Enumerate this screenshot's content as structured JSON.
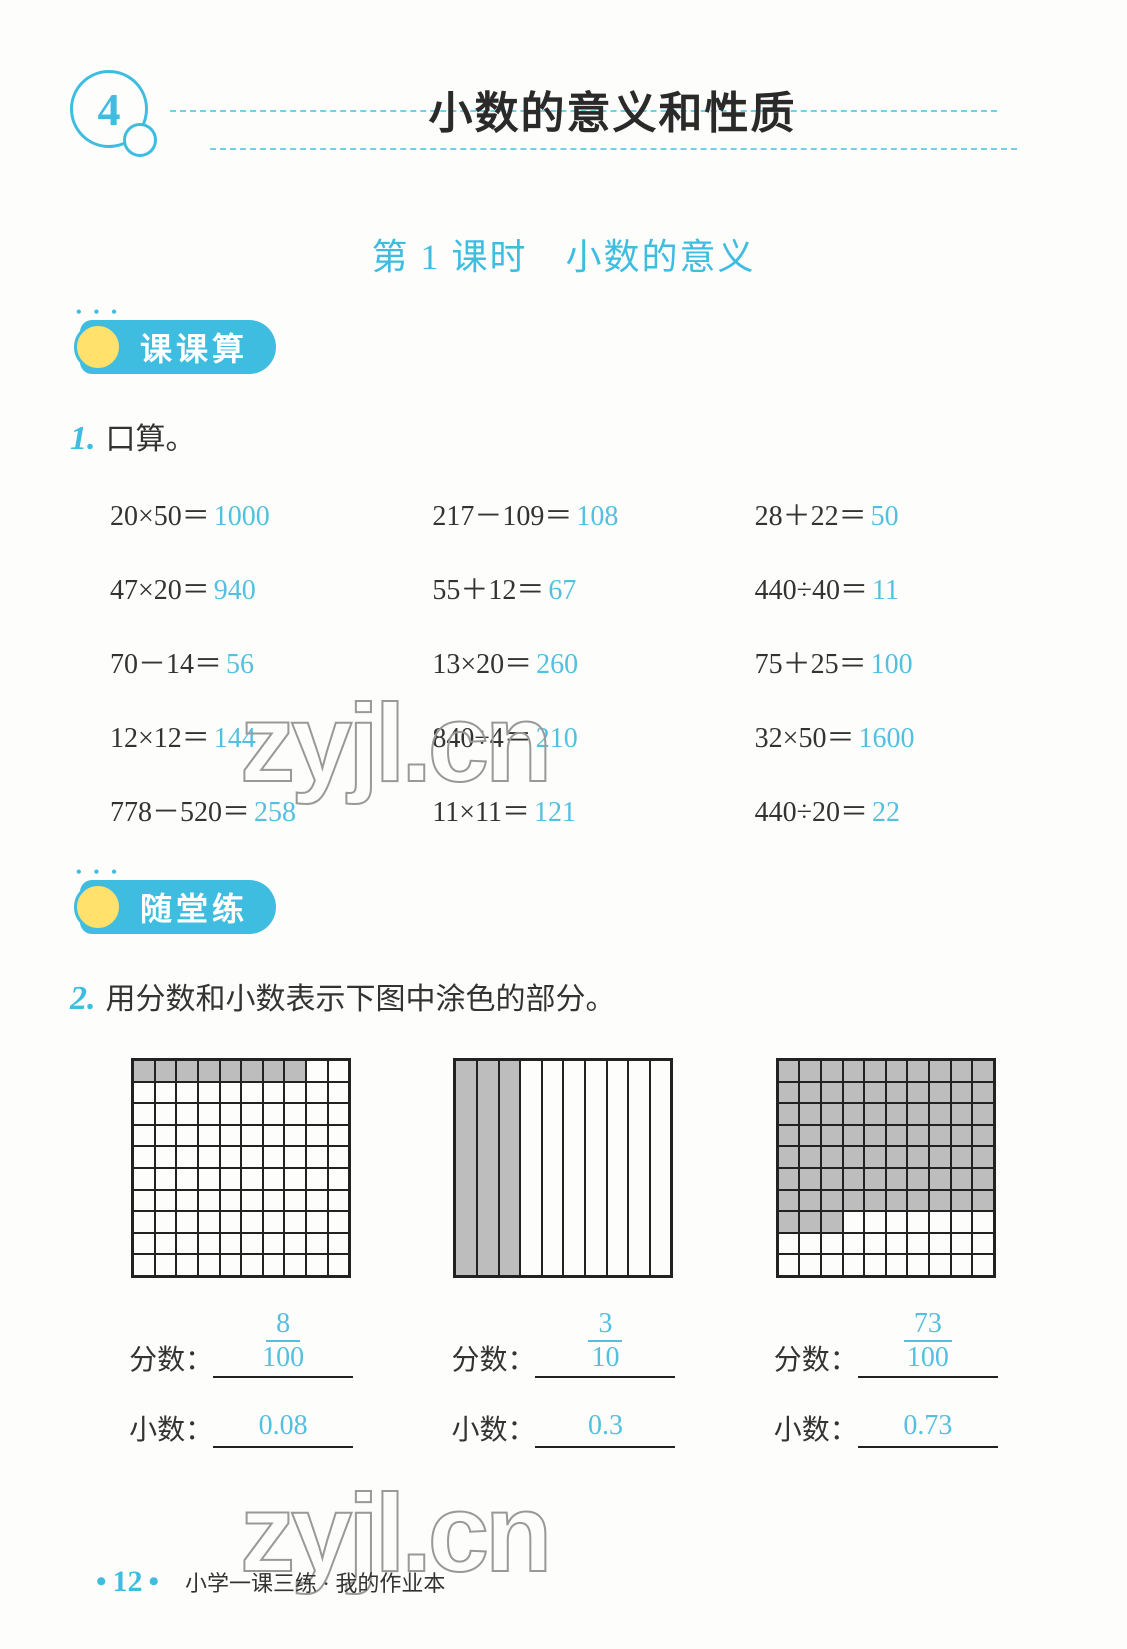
{
  "chapter": {
    "num": "4",
    "title": "小数的意义和性质"
  },
  "subtitle": "第 1 课时　小数的意义",
  "section1": {
    "label": "课课算"
  },
  "section2": {
    "label": "随堂练"
  },
  "q1": {
    "num": "1.",
    "text": "口算。",
    "rows": [
      [
        {
          "e": "20×50＝",
          "a": "1000"
        },
        {
          "e": "217－109＝",
          "a": "108"
        },
        {
          "e": "28＋22＝",
          "a": "50"
        }
      ],
      [
        {
          "e": "47×20＝",
          "a": "940"
        },
        {
          "e": "55＋12＝",
          "a": "67"
        },
        {
          "e": "440÷40＝",
          "a": "11"
        }
      ],
      [
        {
          "e": "70－14＝",
          "a": "56"
        },
        {
          "e": "13×20＝",
          "a": "260"
        },
        {
          "e": "75＋25＝",
          "a": "100"
        }
      ],
      [
        {
          "e": "12×12＝",
          "a": "144"
        },
        {
          "e": "840÷4＝",
          "a": "210"
        },
        {
          "e": "32×50＝",
          "a": "1600"
        }
      ],
      [
        {
          "e": "778－520＝",
          "a": "258"
        },
        {
          "e": "11×11＝",
          "a": "121"
        },
        {
          "e": "440÷20＝",
          "a": "22"
        }
      ]
    ]
  },
  "q2": {
    "num": "2.",
    "text": "用分数和小数表示下图中涂色的部分。",
    "grids": [
      {
        "type": "hundred",
        "filled": 8,
        "frac_n": "8",
        "frac_d": "100",
        "dec": "0.08"
      },
      {
        "type": "ten",
        "filled": 3,
        "frac_n": "3",
        "frac_d": "10",
        "dec": "0.3"
      },
      {
        "type": "hundred",
        "filled": 73,
        "frac_n": "73",
        "frac_d": "100",
        "dec": "0.73"
      }
    ],
    "label_frac": "分数：",
    "label_dec": "小数："
  },
  "watermark": "zyjl.cn",
  "footer": {
    "page": "12",
    "text": "小学一课三练 · 我的作业本"
  },
  "colors": {
    "accent": "#3fbde0",
    "answer": "#54c0e0",
    "fill": "#bdbdbd",
    "clock": "#ffe16b"
  }
}
